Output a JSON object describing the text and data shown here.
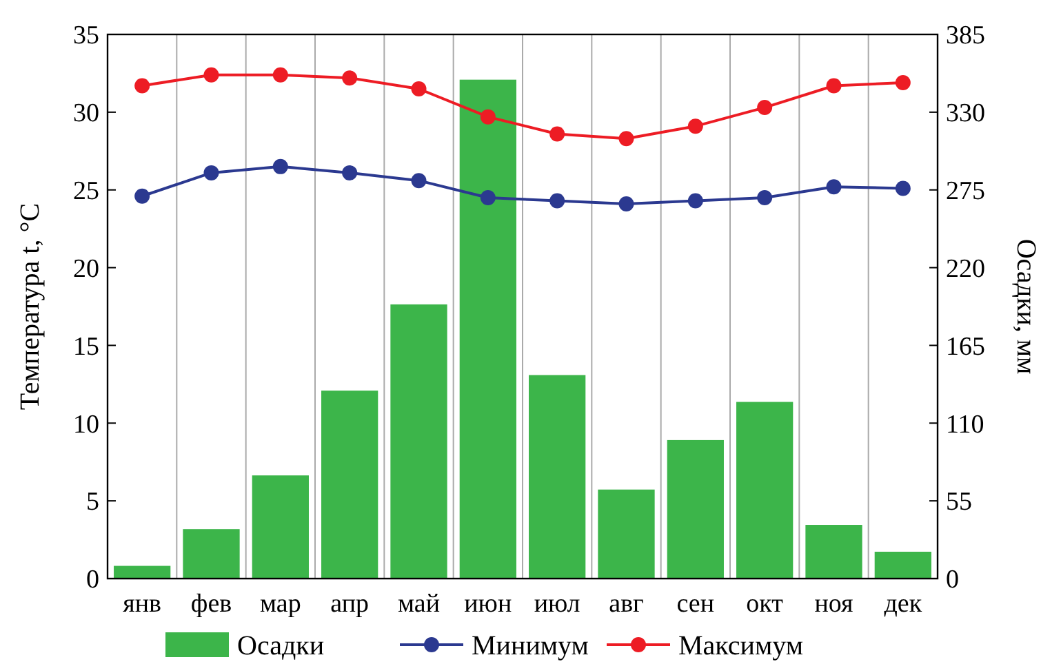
{
  "chart_data": {
    "type": "bar",
    "ylabel": "Температура t, °C",
    "y2label": "Осадки, мм",
    "categories": [
      "янв",
      "фев",
      "мар",
      "апр",
      "май",
      "июн",
      "июл",
      "авг",
      "сен",
      "окт",
      "ноя",
      "дек"
    ],
    "series": [
      {
        "name": "Осадки",
        "axis": "y2",
        "color": "#3cb54a",
        "values": [
          9,
          35,
          73,
          133,
          194,
          353,
          144,
          63,
          98,
          125,
          38,
          19
        ]
      },
      {
        "name": "Минимум",
        "type": "line",
        "color": "#2b3990",
        "values": [
          24.6,
          26.1,
          26.5,
          26.1,
          25.6,
          24.5,
          24.3,
          24.1,
          24.3,
          24.5,
          25.2,
          25.1
        ]
      },
      {
        "name": "Максимум",
        "type": "line",
        "color": "#ed1c24",
        "values": [
          31.7,
          32.4,
          32.4,
          32.2,
          31.5,
          29.7,
          28.6,
          28.3,
          29.1,
          30.3,
          31.7,
          31.9
        ]
      }
    ],
    "ylim": [
      0,
      35
    ],
    "yticks": [
      0,
      5,
      10,
      15,
      20,
      25,
      30,
      35
    ],
    "y2lim": [
      0,
      385
    ],
    "y2ticks": [
      0,
      55,
      110,
      165,
      220,
      275,
      330,
      385
    ],
    "grid": "x",
    "legend": "bottom",
    "marker": "circle",
    "line_style": "solid"
  }
}
